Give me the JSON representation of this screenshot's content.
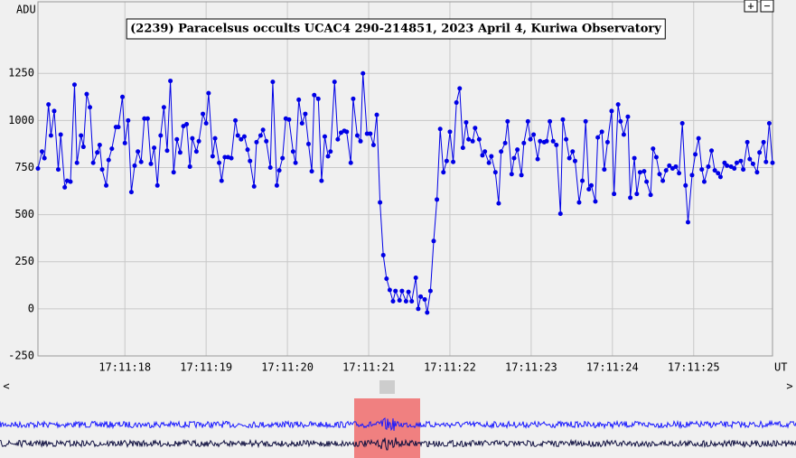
{
  "chart_data": {
    "type": "line",
    "title": "(2239) Paracelsus occults UCAC4 290-214851, 2023 April 4, Kuriwa Observatory",
    "y_label": "ADU",
    "x_label": "UT",
    "x": [
      16.93,
      16.98,
      17.01,
      17.06,
      17.09,
      17.13,
      17.18,
      17.21,
      17.26,
      17.29,
      17.33,
      17.38,
      17.41,
      17.46,
      17.49,
      17.53,
      17.57,
      17.61,
      17.66,
      17.69,
      17.72,
      17.77,
      17.8,
      17.84,
      17.89,
      17.92,
      17.97,
      18.0,
      18.04,
      18.08,
      18.12,
      18.16,
      18.2,
      18.24,
      18.28,
      18.32,
      18.36,
      18.4,
      18.44,
      18.48,
      18.52,
      18.56,
      18.6,
      18.64,
      18.68,
      18.72,
      18.76,
      18.8,
      18.83,
      18.88,
      18.91,
      18.96,
      19.0,
      19.03,
      19.08,
      19.11,
      19.16,
      19.19,
      19.23,
      19.27,
      19.31,
      19.36,
      19.39,
      19.43,
      19.47,
      19.51,
      19.54,
      19.59,
      19.62,
      19.67,
      19.7,
      19.74,
      19.79,
      19.82,
      19.87,
      19.9,
      19.94,
      19.98,
      20.02,
      20.07,
      20.1,
      20.14,
      20.18,
      20.22,
      20.26,
      20.3,
      20.33,
      20.38,
      20.42,
      20.46,
      20.5,
      20.53,
      20.58,
      20.62,
      20.66,
      20.7,
      20.73,
      20.78,
      20.81,
      20.86,
      20.9,
      20.93,
      20.98,
      21.02,
      21.06,
      21.1,
      21.14,
      21.18,
      21.22,
      21.26,
      21.3,
      21.33,
      21.38,
      21.41,
      21.46,
      21.49,
      21.53,
      21.58,
      21.61,
      21.64,
      21.69,
      21.72,
      21.76,
      21.8,
      21.84,
      21.88,
      21.92,
      21.96,
      22.0,
      22.04,
      22.08,
      22.12,
      22.16,
      22.2,
      22.23,
      22.28,
      22.31,
      22.36,
      22.4,
      22.43,
      22.48,
      22.51,
      22.56,
      22.6,
      22.63,
      22.68,
      22.71,
      22.76,
      22.79,
      22.83,
      22.88,
      22.91,
      22.96,
      22.99,
      23.03,
      23.08,
      23.11,
      23.16,
      23.19,
      23.23,
      23.27,
      23.31,
      23.36,
      23.39,
      23.43,
      23.47,
      23.51,
      23.54,
      23.59,
      23.63,
      23.67,
      23.71,
      23.74,
      23.79,
      23.82,
      23.87,
      23.9,
      23.94,
      23.99,
      24.02,
      24.07,
      24.1,
      24.14,
      24.19,
      24.22,
      24.27,
      24.3,
      24.34,
      24.39,
      24.42,
      24.47,
      24.5,
      24.54,
      24.58,
      24.62,
      24.66,
      24.7,
      24.74,
      24.78,
      24.82,
      24.86,
      24.9,
      24.93,
      24.98,
      25.02,
      25.06,
      25.1,
      25.13,
      25.18,
      25.22,
      25.26,
      25.3,
      25.33,
      25.38,
      25.41,
      25.46,
      25.5,
      25.53,
      25.58,
      25.61,
      25.66,
      25.69,
      25.73,
      25.78,
      25.81,
      25.86,
      25.89,
      25.93,
      25.97
    ],
    "series": [
      {
        "color": "#0000e6",
        "values": [
          745,
          835,
          800,
          1085,
          920,
          1050,
          740,
          925,
          645,
          680,
          675,
          1190,
          775,
          920,
          860,
          1140,
          1070,
          775,
          830,
          870,
          740,
          655,
          790,
          850,
          965,
          965,
          1125,
          880,
          1000,
          620,
          760,
          835,
          780,
          1010,
          1010,
          770,
          855,
          655,
          920,
          1070,
          840,
          1210,
          725,
          900,
          830,
          970,
          980,
          755,
          905,
          835,
          890,
          1035,
          985,
          1145,
          810,
          905,
          775,
          680,
          805,
          805,
          800,
          1000,
          920,
          900,
          915,
          845,
          785,
          650,
          885,
          920,
          950,
          890,
          750,
          1205,
          655,
          735,
          800,
          1010,
          1005,
          835,
          775,
          1110,
          985,
          1035,
          875,
          730,
          1135,
          1115,
          680,
          915,
          810,
          835,
          1205,
          900,
          935,
          945,
          940,
          775,
          1115,
          920,
          890,
          1250,
          930,
          930,
          870,
          1030,
          565,
          285,
          160,
          100,
          40,
          95,
          45,
          95,
          40,
          90,
          40,
          165,
          0,
          65,
          50,
          -20,
          95,
          360,
          580,
          955,
          725,
          785,
          940,
          780,
          1095,
          1170,
          855,
          990,
          900,
          890,
          960,
          900,
          815,
          835,
          775,
          810,
          725,
          560,
          835,
          880,
          995,
          715,
          800,
          845,
          710,
          880,
          995,
          900,
          925,
          795,
          890,
          885,
          890,
          995,
          890,
          870,
          505,
          1005,
          900,
          800,
          835,
          785,
          565,
          680,
          995,
          635,
          655,
          570,
          910,
          940,
          740,
          885,
          1050,
          610,
          1085,
          995,
          925,
          1020,
          590,
          800,
          610,
          725,
          730,
          675,
          605,
          850,
          805,
          715,
          680,
          735,
          760,
          745,
          755,
          720,
          985,
          655,
          460,
          710,
          820,
          905,
          740,
          675,
          755,
          840,
          735,
          720,
          700,
          775,
          760,
          755,
          745,
          775,
          785,
          740,
          885,
          795,
          770,
          725,
          830,
          885,
          780,
          985,
          775
        ]
      }
    ],
    "xlim": [
      16.93,
      25.97
    ],
    "ylim": [
      -250,
      1630
    ],
    "xticks": [
      {
        "value": 18,
        "label": "17:11:18"
      },
      {
        "value": 19,
        "label": "17:11:19"
      },
      {
        "value": 20,
        "label": "17:11:20"
      },
      {
        "value": 21,
        "label": "17:11:21"
      },
      {
        "value": 22,
        "label": "17:11:22"
      },
      {
        "value": 23,
        "label": "17:11:23"
      },
      {
        "value": 24,
        "label": "17:11:24"
      },
      {
        "value": 25,
        "label": "17:11:25"
      }
    ],
    "yticks": [
      -250,
      0,
      250,
      500,
      750,
      1000,
      1250
    ],
    "grid": true
  },
  "controls": {
    "zoom_in": "+",
    "zoom_out": "−",
    "scroll_left": "<",
    "scroll_right": ">"
  }
}
